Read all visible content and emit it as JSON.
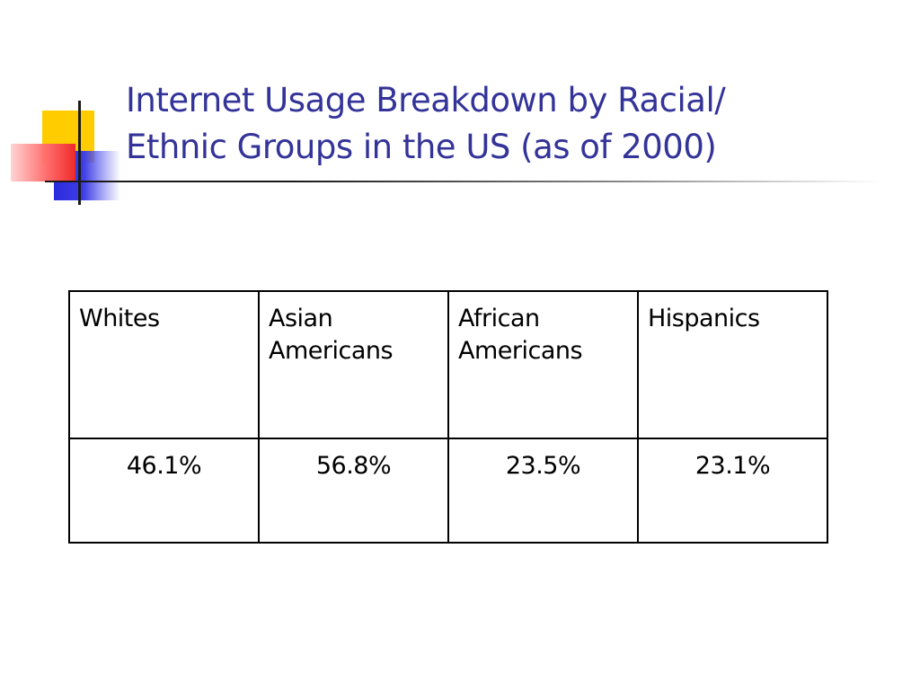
{
  "slide": {
    "title_lines": [
      "Internet Usage Breakdown by Racial/",
      "Ethnic Groups in the US (as of 2000)"
    ]
  },
  "table": {
    "headers": [
      [
        "Whites"
      ],
      [
        "Asian",
        "Americans"
      ],
      [
        "African",
        "Americans"
      ],
      [
        "Hispanics"
      ]
    ],
    "values": [
      "46.1%",
      "56.8%",
      "23.5%",
      "23.1%"
    ]
  },
  "colors": {
    "title": "#333399",
    "accent_yellow": "#ffcc00",
    "accent_blue": "#2a2adf",
    "accent_red": "#f02a2a",
    "table_border": "#000000"
  }
}
